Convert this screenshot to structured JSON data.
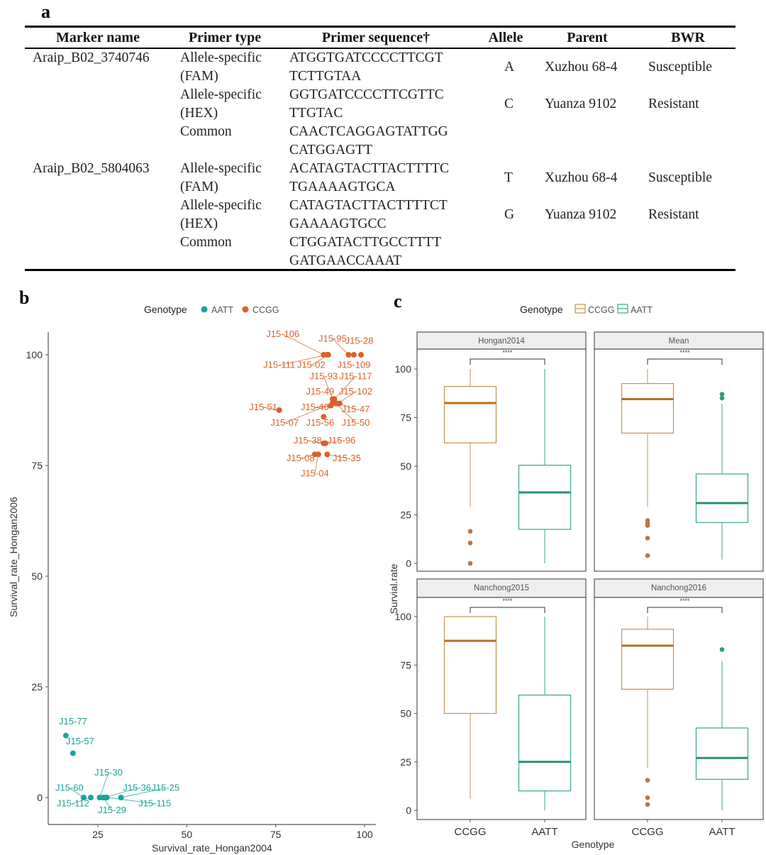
{
  "panel_labels": {
    "a": "a",
    "b": "b",
    "c": "c"
  },
  "table": {
    "headers": [
      "Marker name",
      "Primer type",
      "Primer sequence†",
      "Allele",
      "Parent",
      "BWR"
    ],
    "markers": [
      {
        "name": "Araip_B02_3740746",
        "primers": [
          {
            "type": [
              "Allele-specific",
              "(FAM)"
            ],
            "sequence": [
              "ATGGTGATCCCCTTCGT",
              "TCTTGTAA"
            ],
            "allele": "A",
            "parent": "Xuzhou 68-4",
            "bwr": "Susceptible"
          },
          {
            "type": [
              "Allele-specific",
              "(HEX)"
            ],
            "sequence": [
              "GGTGATCCCCTTCGTTC",
              "TTGTAC"
            ],
            "allele": "C",
            "parent": "Yuanza 9102",
            "bwr": "Resistant"
          },
          {
            "type": [
              "Common"
            ],
            "sequence": [
              "CAACTCAGGAGTATTGG",
              "CATGGAGTT"
            ],
            "allele": "",
            "parent": "",
            "bwr": ""
          }
        ]
      },
      {
        "name": "Araip_B02_5804063",
        "primers": [
          {
            "type": [
              "Allele-specific",
              "(FAM)"
            ],
            "sequence": [
              "ACATAGTACTTACTTTTC",
              "TGAAAAGTGCA"
            ],
            "allele": "T",
            "parent": "Xuzhou 68-4",
            "bwr": "Susceptible"
          },
          {
            "type": [
              "Allele-specific",
              "(HEX)"
            ],
            "sequence": [
              "CATAGTACTTACTTTTCT",
              "GAAAAGTGCC"
            ],
            "allele": "G",
            "parent": "Yuanza 9102",
            "bwr": "Resistant"
          },
          {
            "type": [
              "Common"
            ],
            "sequence": [
              "CTGGATACTTGCCTTTT",
              "GATGAACCAAAT"
            ],
            "allele": "",
            "parent": "",
            "bwr": ""
          }
        ]
      }
    ]
  },
  "colors": {
    "AATT": "#1aa39a",
    "CCGG": "#d9622b",
    "CCGG_box": "#c8924a",
    "AATT_box": "#3aa58f",
    "CCGG_median": "#c06b22",
    "AATT_median": "#2a8f72"
  },
  "chart_data": [
    {
      "type": "scatter",
      "panel": "b",
      "xlabel": "Survival_rate_Hongan2004",
      "ylabel": "Survival_rate_Hongan2006",
      "xlim": [
        12,
        103
      ],
      "ylim": [
        -5,
        105
      ],
      "xticks": [
        25,
        50,
        75,
        100
      ],
      "yticks": [
        0,
        25,
        50,
        75,
        100
      ],
      "grid": false,
      "legend": {
        "title": "Genotype",
        "position": "top",
        "entries": [
          "AATT",
          "CCGG"
        ]
      },
      "series": [
        {
          "name": "CCGG",
          "points": [
            {
              "label": "J15-106",
              "x": 88.5,
              "y": 100,
              "lx": 77,
              "ly": 104
            },
            {
              "label": "J15-111",
              "x": 89.5,
              "y": 100,
              "lx": 76,
              "ly": 97
            },
            {
              "label": "J15-02",
              "x": 89.8,
              "y": 100,
              "lx": 85,
              "ly": 97
            },
            {
              "label": "J15-95",
              "x": 95.5,
              "y": 100,
              "lx": 91,
              "ly": 103
            },
            {
              "label": "J15-28",
              "x": 97,
              "y": 100,
              "lx": 98.5,
              "ly": 102.5
            },
            {
              "label": "J15-109",
              "x": 99,
              "y": 100,
              "lx": 97,
              "ly": 97
            },
            {
              "label": "J15-93",
              "x": 91,
              "y": 90,
              "lx": 88.5,
              "ly": 94.5
            },
            {
              "label": "J15-117",
              "x": 91.5,
              "y": 90,
              "lx": 97.5,
              "ly": 94.5
            },
            {
              "label": "J15-49",
              "x": 91,
              "y": 89,
              "lx": 87.5,
              "ly": 91
            },
            {
              "label": "J15-102",
              "x": 92.5,
              "y": 89,
              "lx": 97.5,
              "ly": 91
            },
            {
              "label": "J15-47",
              "x": 93,
              "y": 89,
              "lx": 97.5,
              "ly": 87
            },
            {
              "label": "J15-46",
              "x": 90.5,
              "y": 88.5,
              "lx": 86,
              "ly": 87.5
            },
            {
              "label": "J15-07",
              "x": 91,
              "y": 89,
              "lx": 77.5,
              "ly": 84
            },
            {
              "label": "J15-56",
              "x": 88.5,
              "y": 86,
              "lx": 87.5,
              "ly": 84
            },
            {
              "label": "J15-50",
              "x": 92,
              "y": 89,
              "lx": 97.5,
              "ly": 84
            },
            {
              "label": "J15-51",
              "x": 76,
              "y": 87.5,
              "lx": 71.5,
              "ly": 87.5
            },
            {
              "label": "J15-38",
              "x": 88.5,
              "y": 80,
              "lx": 84,
              "ly": 80
            },
            {
              "label": "J15-96",
              "x": 89,
              "y": 80,
              "lx": 93.5,
              "ly": 80
            },
            {
              "label": "J15-08",
              "x": 86,
              "y": 77.5,
              "lx": 82,
              "ly": 76
            },
            {
              "label": "J15-35",
              "x": 89.5,
              "y": 77.5,
              "lx": 95,
              "ly": 76
            },
            {
              "label": "J15-04",
              "x": 87,
              "y": 77.5,
              "lx": 86,
              "ly": 72.5
            }
          ]
        },
        {
          "name": "AATT",
          "points": [
            {
              "label": "J15-77",
              "x": 16,
              "y": 14,
              "lx": 18,
              "ly": 16.5
            },
            {
              "label": "J15-57",
              "x": 18,
              "y": 10,
              "lx": 20,
              "ly": 12
            },
            {
              "label": "J15-60",
              "x": 21,
              "y": 0,
              "lx": 17,
              "ly": 1.5
            },
            {
              "label": "J15-112",
              "x": 23,
              "y": 0,
              "lx": 18,
              "ly": -2
            },
            {
              "label": "J15-30",
              "x": 25.5,
              "y": 0,
              "lx": 28,
              "ly": 5
            },
            {
              "label": "J15-29",
              "x": 26.5,
              "y": 0,
              "lx": 29,
              "ly": -3.5
            },
            {
              "label": "J15-36",
              "x": 27,
              "y": 0,
              "lx": 36,
              "ly": 1.5
            },
            {
              "label": "J15-25",
              "x": 31.5,
              "y": 0,
              "lx": 44,
              "ly": 1.5
            },
            {
              "label": "J15-115",
              "x": 27.5,
              "y": 0,
              "lx": 41,
              "ly": -2
            }
          ]
        }
      ]
    },
    {
      "type": "box",
      "panel": "c",
      "xlabel": "Genotype",
      "ylabel": "Survial.rate",
      "ylim": [
        -5,
        113
      ],
      "yticks": [
        0,
        25,
        50,
        75,
        100
      ],
      "categories": [
        "CCGG",
        "AATT"
      ],
      "legend": {
        "title": "Genotype",
        "position": "top",
        "entries": [
          "CCGG",
          "AATT"
        ]
      },
      "facets": [
        {
          "title": "Hongan2014",
          "significance": "****",
          "boxes": [
            {
              "group": "CCGG",
              "whisker_low": 29,
              "q1": 62,
              "median": 82.5,
              "q3": 91,
              "whisker_high": 100,
              "outliers": [
                16.5,
                10.5,
                0
              ]
            },
            {
              "group": "AATT",
              "whisker_low": 0,
              "q1": 17.5,
              "median": 36.5,
              "q3": 50.5,
              "whisker_high": 100,
              "outliers": []
            }
          ]
        },
        {
          "title": "Mean",
          "significance": "****",
          "boxes": [
            {
              "group": "CCGG",
              "whisker_low": 29,
              "q1": 67,
              "median": 84.5,
              "q3": 92.5,
              "whisker_high": 100,
              "outliers": [
                22,
                20.5,
                19.5,
                13,
                4
              ]
            },
            {
              "group": "AATT",
              "whisker_low": 2,
              "q1": 21,
              "median": 31,
              "q3": 46,
              "whisker_high": 82,
              "outliers": [
                87,
                85
              ]
            }
          ]
        },
        {
          "title": "Nanchong2015",
          "significance": "****",
          "boxes": [
            {
              "group": "CCGG",
              "whisker_low": 6,
              "q1": 50,
              "median": 87.5,
              "q3": 100,
              "whisker_high": 100,
              "outliers": []
            },
            {
              "group": "AATT",
              "whisker_low": 0,
              "q1": 10,
              "median": 25,
              "q3": 59.5,
              "whisker_high": 100,
              "outliers": []
            }
          ]
        },
        {
          "title": "Nanchong2016",
          "significance": "****",
          "boxes": [
            {
              "group": "CCGG",
              "whisker_low": 22,
              "q1": 62.5,
              "median": 85,
              "q3": 93.5,
              "whisker_high": 100,
              "outliers": [
                15.5,
                6.5,
                3
              ]
            },
            {
              "group": "AATT",
              "whisker_low": 0,
              "q1": 16,
              "median": 27,
              "q3": 42.5,
              "whisker_high": 77,
              "outliers": [
                83
              ]
            }
          ]
        }
      ]
    }
  ]
}
